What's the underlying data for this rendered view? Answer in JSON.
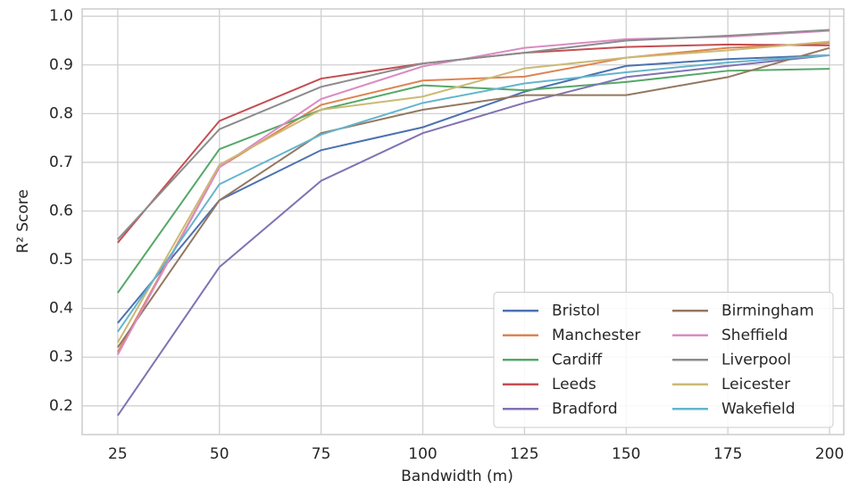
{
  "chart_data": {
    "type": "line",
    "xlabel": "Bandwidth (m)",
    "ylabel": "R² Score",
    "x": [
      25,
      50,
      75,
      100,
      125,
      150,
      175,
      200
    ],
    "xlim": [
      16.25,
      203.5
    ],
    "xticks": [
      25,
      50,
      75,
      100,
      125,
      150,
      175,
      200
    ],
    "ylim": [
      0.141,
      1.015
    ],
    "yticks": [
      0.2,
      0.3,
      0.4,
      0.5,
      0.6,
      0.7,
      0.8,
      0.9,
      {
        "value": 1,
        "label": "1.0"
      }
    ],
    "grid": true,
    "legend": "lower right",
    "legend_columns": 2,
    "series": [
      {
        "name": "Bristol",
        "color": "#4c72b0",
        "values": [
          0.37,
          0.622,
          0.725,
          0.772,
          0.845,
          0.898,
          0.912,
          0.92
        ]
      },
      {
        "name": "Manchester",
        "color": "#dd8452",
        "values": [
          0.31,
          0.69,
          0.818,
          0.868,
          0.876,
          0.915,
          0.935,
          0.945
        ]
      },
      {
        "name": "Cardiff",
        "color": "#55a868",
        "values": [
          0.432,
          0.727,
          0.808,
          0.858,
          0.848,
          0.865,
          0.888,
          0.892
        ]
      },
      {
        "name": "Leeds",
        "color": "#c44e52",
        "values": [
          0.535,
          0.785,
          0.872,
          0.903,
          0.925,
          0.937,
          0.942,
          0.94
        ]
      },
      {
        "name": "Bradford",
        "color": "#8172b3",
        "values": [
          0.18,
          0.485,
          0.662,
          0.76,
          0.822,
          0.875,
          0.898,
          0.92
        ]
      },
      {
        "name": "Birmingham",
        "color": "#937860",
        "values": [
          0.32,
          0.622,
          0.76,
          0.808,
          0.838,
          0.838,
          0.875,
          0.935
        ]
      },
      {
        "name": "Sheffield",
        "color": "#da8bc3",
        "values": [
          0.305,
          0.69,
          0.83,
          0.897,
          0.935,
          0.953,
          0.958,
          0.97
        ]
      },
      {
        "name": "Liverpool",
        "color": "#8c8c8c",
        "values": [
          0.542,
          0.768,
          0.855,
          0.903,
          0.925,
          0.95,
          0.96,
          0.972
        ]
      },
      {
        "name": "Leicester",
        "color": "#ccb974",
        "values": [
          0.33,
          0.695,
          0.808,
          0.835,
          0.893,
          0.915,
          0.93,
          0.948
        ]
      },
      {
        "name": "Wakefield",
        "color": "#64b5cd",
        "values": [
          0.352,
          0.655,
          0.757,
          0.822,
          0.862,
          0.885,
          0.905,
          0.92
        ]
      }
    ]
  }
}
